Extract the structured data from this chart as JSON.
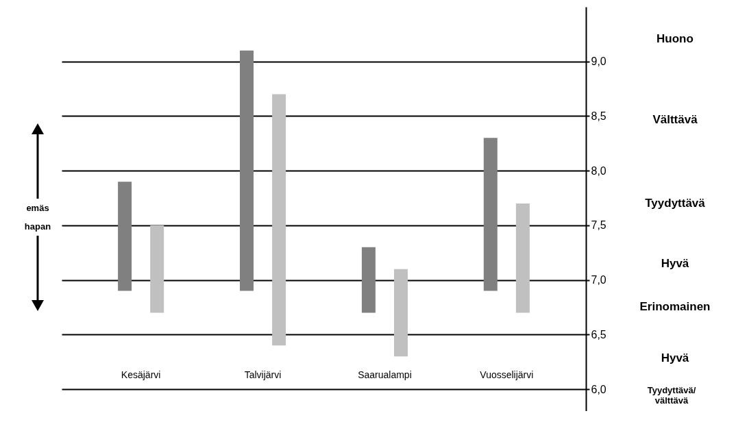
{
  "chart_data": {
    "type": "bar",
    "categories": [
      "Kesäjärvi",
      "Talvijärvi",
      "Saarualampi",
      "Vuosselijärvi"
    ],
    "series": [
      {
        "color": "#808080",
        "base": [
          6.9,
          6.9,
          6.7,
          6.9
        ],
        "values": [
          1.0,
          2.2,
          0.6,
          1.4
        ]
      },
      {
        "color": "#c0c0c0",
        "base": [
          6.7,
          6.4,
          6.3,
          6.7
        ],
        "values": [
          0.8,
          2.3,
          0.8,
          1.0
        ]
      }
    ],
    "ylim": [
      5.8,
      9.5
    ],
    "yticks": [
      {
        "value": 6,
        "label": "6,0"
      },
      {
        "value": 6.5,
        "label": "6,5"
      },
      {
        "value": 7,
        "label": "7,0"
      },
      {
        "value": 7.5,
        "label": "7,5"
      },
      {
        "value": 8,
        "label": "8,0"
      },
      {
        "value": 8.5,
        "label": "8,5"
      },
      {
        "value": 9,
        "label": "9,0"
      }
    ],
    "grid": "y",
    "legend": false,
    "annotations": [
      "Huono",
      "Välttävä",
      "Tyydyttävä",
      "Hyvä",
      "Erinomainen",
      "Hyvä",
      "Tyydyttävä/ välttävä",
      "emäs",
      "hapan"
    ]
  }
}
